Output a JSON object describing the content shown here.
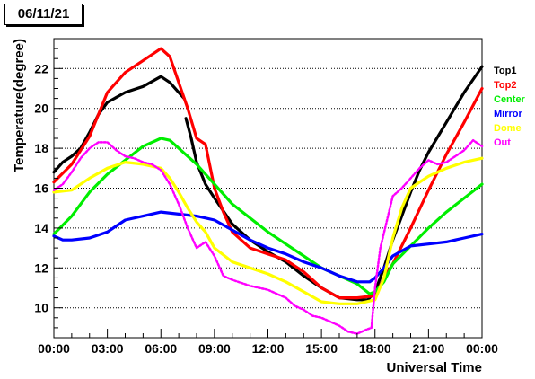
{
  "chart_data": {
    "type": "line",
    "title": "06/11/21",
    "xlabel": "Universal Time",
    "ylabel": "Temperature(degree)",
    "xlim": [
      0,
      24
    ],
    "ylim": [
      8.5,
      23.5
    ],
    "x_ticks": [
      "00:00",
      "03:00",
      "06:00",
      "09:00",
      "12:00",
      "15:00",
      "18:00",
      "21:00",
      "00:00"
    ],
    "y_ticks": [
      10,
      12,
      14,
      16,
      18,
      20,
      22
    ],
    "grid": true,
    "legend_position": "right",
    "x_unit": "hours",
    "series": [
      {
        "name": "Top1",
        "color": "#000000",
        "points": [
          [
            0,
            16.8
          ],
          [
            0.5,
            17.3
          ],
          [
            1,
            17.6
          ],
          [
            1.5,
            18.0
          ],
          [
            2,
            18.8
          ],
          [
            2.5,
            19.7
          ],
          [
            3,
            20.3
          ],
          [
            4,
            20.8
          ],
          [
            5,
            21.1
          ],
          [
            6,
            21.6
          ],
          [
            6.5,
            21.3
          ],
          [
            7,
            20.8
          ],
          [
            7.3,
            20.5
          ]
        ]
      },
      {
        "name": "Top1",
        "color": "#000000",
        "points": [
          [
            7.4,
            19.5
          ],
          [
            7.7,
            18.5
          ],
          [
            8,
            17.3
          ],
          [
            8.5,
            16.2
          ],
          [
            9,
            15.5
          ],
          [
            10,
            14.2
          ],
          [
            11,
            13.4
          ],
          [
            12,
            12.8
          ],
          [
            13,
            12.3
          ],
          [
            14,
            11.6
          ],
          [
            15,
            11.0
          ],
          [
            16,
            10.5
          ],
          [
            17,
            10.4
          ],
          [
            17.6,
            10.4
          ],
          [
            18,
            10.8
          ],
          [
            18.5,
            12.0
          ],
          [
            19,
            13.4
          ],
          [
            19.5,
            14.6
          ],
          [
            20,
            15.8
          ],
          [
            20.5,
            16.9
          ],
          [
            21,
            17.8
          ],
          [
            22,
            19.3
          ],
          [
            23,
            20.8
          ],
          [
            24,
            22.1
          ]
        ]
      },
      {
        "name": "Top2",
        "color": "#ff0000",
        "points": [
          [
            0,
            16.3
          ],
          [
            1,
            17.2
          ],
          [
            2,
            18.6
          ],
          [
            3,
            20.8
          ],
          [
            4,
            21.8
          ],
          [
            5,
            22.4
          ],
          [
            6,
            23.0
          ],
          [
            6.5,
            22.6
          ],
          [
            7,
            21.3
          ],
          [
            7.5,
            20.0
          ],
          [
            8,
            18.5
          ],
          [
            8.5,
            18.2
          ],
          [
            9,
            16.0
          ],
          [
            9.5,
            14.8
          ],
          [
            10,
            13.8
          ],
          [
            11,
            13.0
          ],
          [
            12,
            12.7
          ],
          [
            13,
            12.4
          ],
          [
            14,
            11.8
          ],
          [
            15,
            11.0
          ],
          [
            16,
            10.5
          ],
          [
            17,
            10.5
          ],
          [
            18,
            10.6
          ],
          [
            18.5,
            11.5
          ],
          [
            19,
            12.2
          ],
          [
            20,
            14.0
          ],
          [
            21,
            15.9
          ],
          [
            22,
            17.7
          ],
          [
            23,
            19.3
          ],
          [
            24,
            21.0
          ]
        ]
      },
      {
        "name": "Center",
        "color": "#00ee00",
        "points": [
          [
            0,
            13.7
          ],
          [
            1,
            14.6
          ],
          [
            2,
            15.8
          ],
          [
            3,
            16.7
          ],
          [
            4,
            17.4
          ],
          [
            5,
            18.1
          ],
          [
            6,
            18.5
          ],
          [
            6.5,
            18.4
          ],
          [
            7,
            18.0
          ],
          [
            8,
            17.2
          ],
          [
            9,
            16.2
          ],
          [
            10,
            15.2
          ],
          [
            11,
            14.5
          ],
          [
            12,
            13.8
          ],
          [
            13,
            13.2
          ],
          [
            14,
            12.6
          ],
          [
            15,
            12.0
          ],
          [
            16,
            11.6
          ],
          [
            17,
            11.2
          ],
          [
            17.7,
            10.7
          ],
          [
            18,
            10.8
          ],
          [
            18.5,
            11.3
          ],
          [
            19,
            12.2
          ],
          [
            20,
            13.1
          ],
          [
            21,
            14.0
          ],
          [
            22,
            14.8
          ],
          [
            23,
            15.5
          ],
          [
            24,
            16.2
          ]
        ]
      },
      {
        "name": "Mirror",
        "color": "#0000ff",
        "points": [
          [
            0,
            13.6
          ],
          [
            0.5,
            13.4
          ],
          [
            1,
            13.4
          ],
          [
            2,
            13.5
          ],
          [
            3,
            13.8
          ],
          [
            4,
            14.4
          ],
          [
            5,
            14.6
          ],
          [
            6,
            14.8
          ],
          [
            7,
            14.7
          ],
          [
            8,
            14.6
          ],
          [
            9,
            14.4
          ],
          [
            10,
            13.9
          ],
          [
            11,
            13.4
          ],
          [
            12,
            13.0
          ],
          [
            13,
            12.7
          ],
          [
            14,
            12.3
          ],
          [
            15,
            12.0
          ],
          [
            16,
            11.6
          ],
          [
            17,
            11.3
          ],
          [
            17.7,
            11.3
          ],
          [
            18,
            11.5
          ],
          [
            18.5,
            12.0
          ],
          [
            19,
            12.6
          ],
          [
            20,
            13.1
          ],
          [
            21,
            13.2
          ],
          [
            22,
            13.3
          ],
          [
            23,
            13.5
          ],
          [
            24,
            13.7
          ]
        ]
      },
      {
        "name": "Dome",
        "color": "#ffff00",
        "points": [
          [
            0,
            15.8
          ],
          [
            1,
            15.9
          ],
          [
            2,
            16.5
          ],
          [
            3,
            17.0
          ],
          [
            4,
            17.3
          ],
          [
            5,
            17.2
          ],
          [
            6,
            17.0
          ],
          [
            6.5,
            16.5
          ],
          [
            7,
            15.8
          ],
          [
            7.5,
            15.0
          ],
          [
            8,
            14.3
          ],
          [
            8.5,
            13.8
          ],
          [
            9,
            13.0
          ],
          [
            10,
            12.3
          ],
          [
            11,
            12.0
          ],
          [
            12,
            11.7
          ],
          [
            13,
            11.3
          ],
          [
            14,
            10.8
          ],
          [
            15,
            10.3
          ],
          [
            16,
            10.2
          ],
          [
            17,
            10.2
          ],
          [
            18,
            10.4
          ],
          [
            18.5,
            11.5
          ],
          [
            19,
            13.5
          ],
          [
            19.5,
            15.0
          ],
          [
            20,
            16.0
          ],
          [
            21,
            16.6
          ],
          [
            22,
            17.0
          ],
          [
            23,
            17.3
          ],
          [
            24,
            17.5
          ]
        ]
      },
      {
        "name": "Out",
        "color": "#ff00ff",
        "points": [
          [
            0,
            15.9
          ],
          [
            0.5,
            16.2
          ],
          [
            1,
            16.8
          ],
          [
            1.5,
            17.5
          ],
          [
            2,
            18.0
          ],
          [
            2.5,
            18.3
          ],
          [
            3,
            18.3
          ],
          [
            3.5,
            17.9
          ],
          [
            4,
            17.6
          ],
          [
            4.5,
            17.5
          ],
          [
            5,
            17.3
          ],
          [
            5.5,
            17.2
          ],
          [
            6,
            16.9
          ],
          [
            6.5,
            16.2
          ],
          [
            7,
            15.2
          ],
          [
            7.5,
            14.0
          ],
          [
            8,
            13.0
          ],
          [
            8.5,
            13.3
          ],
          [
            9,
            12.6
          ],
          [
            9.5,
            11.6
          ],
          [
            10,
            11.4
          ],
          [
            11,
            11.1
          ],
          [
            12,
            10.9
          ],
          [
            12.5,
            10.7
          ],
          [
            13,
            10.5
          ],
          [
            13.5,
            10.1
          ],
          [
            14,
            9.9
          ],
          [
            14.5,
            9.6
          ],
          [
            15,
            9.5
          ],
          [
            15.5,
            9.3
          ],
          [
            16,
            9.1
          ],
          [
            16.5,
            8.8
          ],
          [
            17,
            8.7
          ],
          [
            17.5,
            8.9
          ],
          [
            17.8,
            9.0
          ],
          [
            18,
            11.0
          ],
          [
            18.3,
            13.0
          ],
          [
            18.7,
            14.5
          ],
          [
            19,
            15.6
          ],
          [
            19.5,
            16.0
          ],
          [
            20,
            16.5
          ],
          [
            20.5,
            17.0
          ],
          [
            21,
            17.4
          ],
          [
            21.5,
            17.2
          ],
          [
            22,
            17.3
          ],
          [
            22.5,
            17.6
          ],
          [
            23,
            17.9
          ],
          [
            23.5,
            18.4
          ],
          [
            24,
            18.1
          ]
        ]
      }
    ]
  }
}
